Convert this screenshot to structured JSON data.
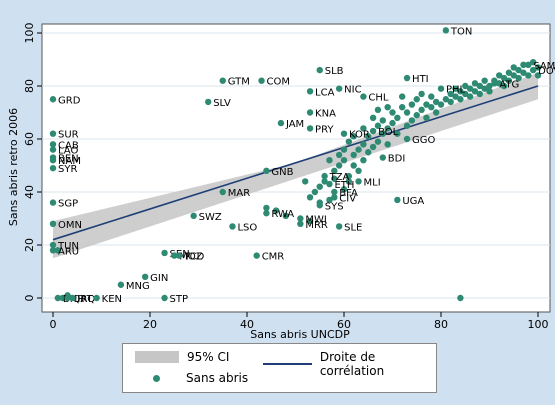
{
  "chart_data": {
    "type": "scatter",
    "xlabel": "Sans abris UNCDP",
    "ylabel": "Sans abris retro 2006",
    "xlim": [
      -1,
      101
    ],
    "ylim": [
      -3,
      102
    ],
    "xticks": [
      0,
      20,
      40,
      60,
      80,
      100
    ],
    "yticks": [
      0,
      20,
      40,
      60,
      80,
      100
    ],
    "grid": "horizontal",
    "legend_position": "bottom",
    "fit_line": {
      "x": [
        0,
        100
      ],
      "y": [
        22,
        80
      ]
    },
    "ci_band": {
      "x": [
        0,
        50,
        100
      ],
      "lower": [
        15,
        45,
        75
      ],
      "upper": [
        29,
        51,
        85
      ]
    },
    "colors": {
      "points": "#2e8a72",
      "fit_line": "#1f3f76",
      "ci_band": "#c6c6c6",
      "background": "#cfe0f1"
    },
    "legend": [
      {
        "label": "95% CI",
        "kind": "band"
      },
      {
        "label": "Droite de corrélation",
        "kind": "line"
      },
      {
        "label": "Sans abris",
        "kind": "dot"
      }
    ],
    "series": [
      {
        "name": "Sans abris",
        "points": [
          {
            "label": "TON",
            "x": 81,
            "y": 101
          },
          {
            "label": "GRD",
            "x": 0,
            "y": 75
          },
          {
            "label": "SUR",
            "x": 0,
            "y": 62
          },
          {
            "label": "CAB",
            "x": 0,
            "y": 58
          },
          {
            "label": "LAO",
            "x": 0,
            "y": 56
          },
          {
            "label": "BEN",
            "x": 0,
            "y": 53
          },
          {
            "label": "NAM",
            "x": 0,
            "y": 52
          },
          {
            "label": "SYR",
            "x": 0,
            "y": 49
          },
          {
            "label": "SGP",
            "x": 0,
            "y": 36
          },
          {
            "label": "OMN",
            "x": 0,
            "y": 28
          },
          {
            "label": "TUN",
            "x": 0,
            "y": 20
          },
          {
            "label": "ARU",
            "x": 0,
            "y": 18
          },
          {
            "label": "BHR",
            "x": 1,
            "y": 0
          },
          {
            "label": "QAT",
            "x": 3,
            "y": 0
          },
          {
            "label": "IRQ",
            "x": 4,
            "y": 0
          },
          {
            "label": "KEN",
            "x": 9,
            "y": 0
          },
          {
            "label": "MNG",
            "x": 14,
            "y": 5
          },
          {
            "label": "GIN",
            "x": 19,
            "y": 8
          },
          {
            "label": "STP",
            "x": 23,
            "y": 0
          },
          {
            "label": "SEN",
            "x": 23,
            "y": 17
          },
          {
            "label": "MOZ",
            "x": 25,
            "y": 16
          },
          {
            "label": "TCD",
            "x": 26,
            "y": 16
          },
          {
            "label": "SWZ",
            "x": 29,
            "y": 31
          },
          {
            "label": "LSO",
            "x": 37,
            "y": 27
          },
          {
            "label": "CMR",
            "x": 42,
            "y": 16
          },
          {
            "label": "MAR",
            "x": 35,
            "y": 40
          },
          {
            "label": "SLV",
            "x": 32,
            "y": 74
          },
          {
            "label": "GTM",
            "x": 35,
            "y": 82
          },
          {
            "label": "COM",
            "x": 43,
            "y": 82
          },
          {
            "label": "SLB",
            "x": 55,
            "y": 86
          },
          {
            "label": "LCA",
            "x": 53,
            "y": 78
          },
          {
            "label": "NIC",
            "x": 59,
            "y": 79
          },
          {
            "label": "CHL",
            "x": 64,
            "y": 76
          },
          {
            "label": "HTI",
            "x": 73,
            "y": 83
          },
          {
            "label": "KNA",
            "x": 53,
            "y": 70
          },
          {
            "label": "JAM",
            "x": 47,
            "y": 66
          },
          {
            "label": "PRY",
            "x": 53,
            "y": 64
          },
          {
            "label": "KOR",
            "x": 60,
            "y": 62
          },
          {
            "label": "UGA",
            "x": 71,
            "y": 37
          },
          {
            "label": "SLE",
            "x": 59,
            "y": 27
          },
          {
            "label": "MLI",
            "x": 63,
            "y": 44
          },
          {
            "label": "BDI",
            "x": 68,
            "y": 53
          },
          {
            "label": "SYS",
            "x": 55,
            "y": 35
          },
          {
            "label": "MWI",
            "x": 51,
            "y": 30
          },
          {
            "label": "MRR",
            "x": 51,
            "y": 28
          },
          {
            "label": "RWA",
            "x": 44,
            "y": 32
          },
          {
            "label": "TZA",
            "x": 56,
            "y": 46
          },
          {
            "label": "ETH",
            "x": 57,
            "y": 43
          },
          {
            "label": "BFA",
            "x": 58,
            "y": 40
          },
          {
            "label": "CIV",
            "x": 58,
            "y": 38
          },
          {
            "label": "GNB",
            "x": 44,
            "y": 48
          },
          {
            "label": "PHL",
            "x": 80,
            "y": 79
          },
          {
            "label": "ATG",
            "x": 91,
            "y": 81
          },
          {
            "label": "BOL",
            "x": 66,
            "y": 63
          },
          {
            "label": "GGO",
            "x": 73,
            "y": 60
          },
          {
            "label": "SAM",
            "x": 98,
            "y": 88
          },
          {
            "label": "DOV",
            "x": 99,
            "y": 86
          }
        ],
        "unlabeled_points": [
          {
            "x": 1,
            "y": 18
          },
          {
            "x": 2,
            "y": 0
          },
          {
            "x": 3,
            "y": 1
          },
          {
            "x": 44,
            "y": 34
          },
          {
            "x": 46,
            "y": 33
          },
          {
            "x": 48,
            "y": 31
          },
          {
            "x": 53,
            "y": 29
          },
          {
            "x": 54,
            "y": 40
          },
          {
            "x": 55,
            "y": 42
          },
          {
            "x": 56,
            "y": 44
          },
          {
            "x": 57,
            "y": 37
          },
          {
            "x": 58,
            "y": 45
          },
          {
            "x": 58,
            "y": 48
          },
          {
            "x": 59,
            "y": 50
          },
          {
            "x": 59,
            "y": 54
          },
          {
            "x": 60,
            "y": 41
          },
          {
            "x": 60,
            "y": 52
          },
          {
            "x": 60,
            "y": 56
          },
          {
            "x": 61,
            "y": 46
          },
          {
            "x": 61,
            "y": 59
          },
          {
            "x": 62,
            "y": 50
          },
          {
            "x": 62,
            "y": 54
          },
          {
            "x": 62,
            "y": 61
          },
          {
            "x": 63,
            "y": 48
          },
          {
            "x": 63,
            "y": 56
          },
          {
            "x": 64,
            "y": 52
          },
          {
            "x": 64,
            "y": 58
          },
          {
            "x": 64,
            "y": 64
          },
          {
            "x": 65,
            "y": 55
          },
          {
            "x": 65,
            "y": 61
          },
          {
            "x": 66,
            "y": 57
          },
          {
            "x": 66,
            "y": 68
          },
          {
            "x": 67,
            "y": 59
          },
          {
            "x": 67,
            "y": 65
          },
          {
            "x": 67,
            "y": 71
          },
          {
            "x": 68,
            "y": 62
          },
          {
            "x": 68,
            "y": 67
          },
          {
            "x": 69,
            "y": 58
          },
          {
            "x": 69,
            "y": 64
          },
          {
            "x": 69,
            "y": 72
          },
          {
            "x": 70,
            "y": 66
          },
          {
            "x": 70,
            "y": 70
          },
          {
            "x": 71,
            "y": 62
          },
          {
            "x": 71,
            "y": 68
          },
          {
            "x": 72,
            "y": 72
          },
          {
            "x": 72,
            "y": 76
          },
          {
            "x": 73,
            "y": 65
          },
          {
            "x": 73,
            "y": 70
          },
          {
            "x": 74,
            "y": 67
          },
          {
            "x": 74,
            "y": 73
          },
          {
            "x": 75,
            "y": 69
          },
          {
            "x": 75,
            "y": 75
          },
          {
            "x": 76,
            "y": 71
          },
          {
            "x": 76,
            "y": 77
          },
          {
            "x": 77,
            "y": 68
          },
          {
            "x": 77,
            "y": 73
          },
          {
            "x": 78,
            "y": 72
          },
          {
            "x": 78,
            "y": 76
          },
          {
            "x": 79,
            "y": 70
          },
          {
            "x": 79,
            "y": 74
          },
          {
            "x": 80,
            "y": 73
          },
          {
            "x": 81,
            "y": 75
          },
          {
            "x": 82,
            "y": 77
          },
          {
            "x": 82,
            "y": 74
          },
          {
            "x": 83,
            "y": 76
          },
          {
            "x": 83,
            "y": 79
          },
          {
            "x": 84,
            "y": 75
          },
          {
            "x": 84,
            "y": 78
          },
          {
            "x": 85,
            "y": 80
          },
          {
            "x": 85,
            "y": 77
          },
          {
            "x": 86,
            "y": 76
          },
          {
            "x": 86,
            "y": 79
          },
          {
            "x": 87,
            "y": 78
          },
          {
            "x": 87,
            "y": 81
          },
          {
            "x": 88,
            "y": 77
          },
          {
            "x": 88,
            "y": 80
          },
          {
            "x": 89,
            "y": 79
          },
          {
            "x": 89,
            "y": 82
          },
          {
            "x": 90,
            "y": 80
          },
          {
            "x": 90,
            "y": 78
          },
          {
            "x": 91,
            "y": 82
          },
          {
            "x": 92,
            "y": 81
          },
          {
            "x": 92,
            "y": 84
          },
          {
            "x": 93,
            "y": 83
          },
          {
            "x": 93,
            "y": 80
          },
          {
            "x": 94,
            "y": 85
          },
          {
            "x": 94,
            "y": 82
          },
          {
            "x": 95,
            "y": 84
          },
          {
            "x": 95,
            "y": 87
          },
          {
            "x": 96,
            "y": 83
          },
          {
            "x": 96,
            "y": 86
          },
          {
            "x": 97,
            "y": 85
          },
          {
            "x": 97,
            "y": 88
          },
          {
            "x": 98,
            "y": 84
          },
          {
            "x": 99,
            "y": 89
          },
          {
            "x": 100,
            "y": 87
          },
          {
            "x": 100,
            "y": 84
          },
          {
            "x": 84,
            "y": 0
          },
          {
            "x": 52,
            "y": 44
          },
          {
            "x": 53,
            "y": 38
          },
          {
            "x": 55,
            "y": 36
          },
          {
            "x": 57,
            "y": 52
          },
          {
            "x": 61,
            "y": 44
          }
        ]
      }
    ]
  }
}
